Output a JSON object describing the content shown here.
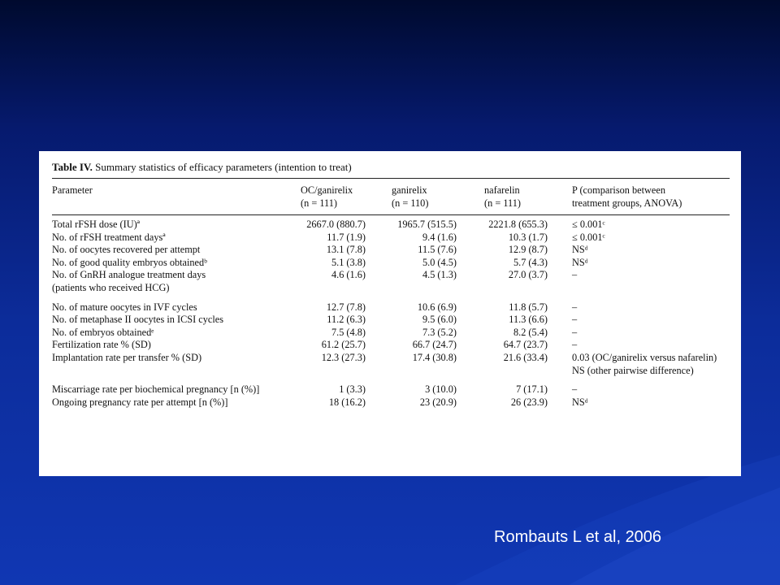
{
  "table": {
    "caption_label": "Table IV.",
    "caption_text": "Summary statistics of efficacy parameters (intention to treat)",
    "headers": {
      "parameter": "Parameter",
      "oc_line1": "OC/ganirelix",
      "oc_line2": "(n = 111)",
      "ganirelix_line1": "ganirelix",
      "ganirelix_line2": "(n = 110)",
      "nafarelin_line1": "nafarelin",
      "nafarelin_line2": "(n = 111)",
      "p_line1": "P (comparison between",
      "p_line2": "treatment groups, ANOVA)"
    },
    "rows": [
      {
        "param": "Total rFSH dose (IU)ª",
        "oc": "2667.0 (880.7)",
        "gan": "1965.7 (515.5)",
        "naf": "2221.8 (655.3)",
        "p": "≤ 0.001ᶜ"
      },
      {
        "param": "No. of rFSH treatment daysª",
        "oc": "11.7 (1.9)",
        "gan": "9.4 (1.6)",
        "naf": "10.3 (1.7)",
        "p": "≤ 0.001ᶜ"
      },
      {
        "param": "No. of oocytes recovered per attempt",
        "oc": "13.1 (7.8)",
        "gan": "11.5 (7.6)",
        "naf": "12.9 (8.7)",
        "p": "NSᵈ"
      },
      {
        "param": "No. of good quality embryos obtainedᵇ",
        "oc": "5.1 (3.8)",
        "gan": "5.0 (4.5)",
        "naf": "5.7 (4.3)",
        "p": "NSᵈ"
      },
      {
        "param": "No. of GnRH analogue treatment days",
        "oc": "4.6 (1.6)",
        "gan": "4.5 (1.3)",
        "naf": "27.0 (3.7)",
        "p": "–"
      },
      {
        "param": "(patients who received HCG)",
        "oc": "",
        "gan": "",
        "naf": "",
        "p": ""
      },
      {
        "param": "No. of mature oocytes in IVF cycles",
        "oc": "12.7 (7.8)",
        "gan": "10.6 (6.9)",
        "naf": "11.8 (5.7)",
        "p": "–"
      },
      {
        "param": "No. of metaphase II oocytes in ICSI cycles",
        "oc": "11.2 (6.3)",
        "gan": "9.5 (6.0)",
        "naf": "11.3 (6.6)",
        "p": "–"
      },
      {
        "param": "No. of embryos obtainedᵉ",
        "oc": "7.5 (4.8)",
        "gan": "7.3 (5.2)",
        "naf": "8.2 (5.4)",
        "p": "–"
      },
      {
        "param": "Fertilization rate % (SD)",
        "oc": "61.2 (25.7)",
        "gan": "66.7 (24.7)",
        "naf": "64.7 (23.7)",
        "p": "–"
      },
      {
        "param": "Implantation rate per transfer % (SD)",
        "oc": "12.3 (27.3)",
        "gan": "17.4 (30.8)",
        "naf": "21.6 (33.4)",
        "p": "0.03 (OC/ganirelix versus nafarelin)"
      },
      {
        "param": "",
        "oc": "",
        "gan": "",
        "naf": "",
        "p": "NS (other pairwise difference)"
      },
      {
        "param": "Miscarriage rate per biochemical pregnancy [n (%)]",
        "oc": "1 (3.3)",
        "gan": "3 (10.0)",
        "naf": "7 (17.1)",
        "p": "–"
      },
      {
        "param": "Ongoing pregnancy rate per attempt [n (%)]",
        "oc": "18 (16.2)",
        "gan": "23 (20.9)",
        "naf": "26 (23.9)",
        "p": "NSᵈ"
      }
    ]
  },
  "citation": "Rombauts L et al, 2006"
}
